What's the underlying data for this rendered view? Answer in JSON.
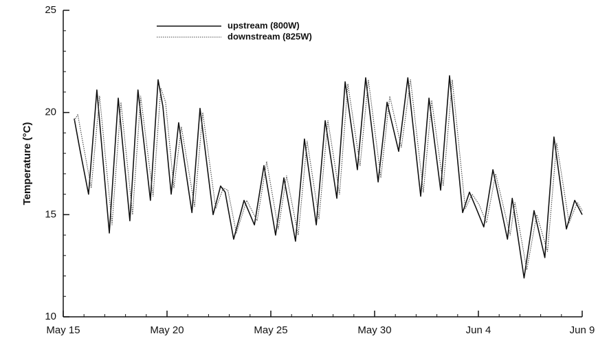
{
  "chart_data": {
    "type": "line",
    "ylabel": "Temperature (°C)",
    "xlim": [
      0,
      25
    ],
    "xticks": [
      {
        "value": 0,
        "label": "May 15"
      },
      {
        "value": 5,
        "label": "May 20"
      },
      {
        "value": 10,
        "label": "May 25"
      },
      {
        "value": 15,
        "label": "May 30"
      },
      {
        "value": 20,
        "label": "Jun 4"
      },
      {
        "value": 25,
        "label": "Jun 9"
      }
    ],
    "ylim": [
      10,
      25
    ],
    "yticks": [
      10,
      15,
      20,
      25
    ],
    "series": [
      {
        "name": "upstream (800W)",
        "color": "#111111",
        "style": "solid",
        "x": [
          0.53,
          0.8,
          1.22,
          1.62,
          2.22,
          2.65,
          3.21,
          3.6,
          4.2,
          4.57,
          4.8,
          5.2,
          5.56,
          6.2,
          6.59,
          7.22,
          7.58,
          7.8,
          8.21,
          8.71,
          9.21,
          9.67,
          10.23,
          10.63,
          11.19,
          11.62,
          12.19,
          12.62,
          13.18,
          13.58,
          14.17,
          14.57,
          15.17,
          15.6,
          16.16,
          16.6,
          17.22,
          17.62,
          18.18,
          18.61,
          19.24,
          19.57,
          19.9,
          20.26,
          20.7,
          21.4,
          21.63,
          22.2,
          22.68,
          23.2,
          23.64,
          24.24,
          24.64,
          25
        ],
        "values": [
          19.7,
          18.2,
          16.0,
          21.1,
          14.1,
          20.7,
          14.7,
          21.1,
          15.7,
          21.6,
          20.3,
          16.0,
          19.5,
          15.1,
          20.2,
          15.0,
          16.4,
          16.1,
          13.8,
          15.7,
          14.5,
          17.4,
          14.0,
          16.8,
          13.7,
          18.7,
          14.5,
          19.6,
          15.8,
          21.5,
          17.2,
          21.7,
          16.6,
          20.5,
          18.1,
          21.7,
          15.9,
          20.7,
          16.2,
          21.8,
          15.1,
          16.1,
          15.3,
          14.4,
          17.2,
          13.8,
          15.8,
          11.9,
          15.2,
          12.9,
          18.8,
          14.3,
          15.7,
          15.0
        ]
      },
      {
        "name": "downstream (825W)",
        "color": "#444444",
        "style": "dotted",
        "x": [
          0.53,
          0.7,
          0.95,
          1.35,
          1.75,
          2.35,
          2.78,
          3.34,
          3.73,
          4.33,
          4.7,
          4.93,
          5.33,
          5.69,
          6.33,
          6.72,
          7.35,
          7.71,
          7.93,
          8.34,
          8.84,
          9.34,
          9.8,
          10.36,
          10.76,
          11.32,
          11.75,
          12.32,
          12.75,
          13.31,
          13.71,
          14.3,
          14.7,
          15.3,
          15.73,
          16.29,
          16.73,
          17.35,
          17.75,
          18.31,
          18.74,
          19.37,
          19.7,
          20.03,
          20.39,
          20.83,
          21.53,
          21.76,
          22.33,
          22.81,
          23.33,
          23.77,
          24.37,
          24.77,
          25
        ],
        "values": [
          19.6,
          19.9,
          18.5,
          16.3,
          20.8,
          14.5,
          20.5,
          15.0,
          20.8,
          15.9,
          21.2,
          20.5,
          16.3,
          19.3,
          15.4,
          20.0,
          15.3,
          16.3,
          16.2,
          14.1,
          15.7,
          14.7,
          17.6,
          14.3,
          16.9,
          14.0,
          18.6,
          14.8,
          19.6,
          16.0,
          21.4,
          17.4,
          21.6,
          16.8,
          20.8,
          18.3,
          21.6,
          16.1,
          20.6,
          16.4,
          21.6,
          15.3,
          16.0,
          15.5,
          14.6,
          17.0,
          14.0,
          15.6,
          12.3,
          15.0,
          13.2,
          18.5,
          14.6,
          15.6,
          15.2
        ]
      }
    ]
  }
}
